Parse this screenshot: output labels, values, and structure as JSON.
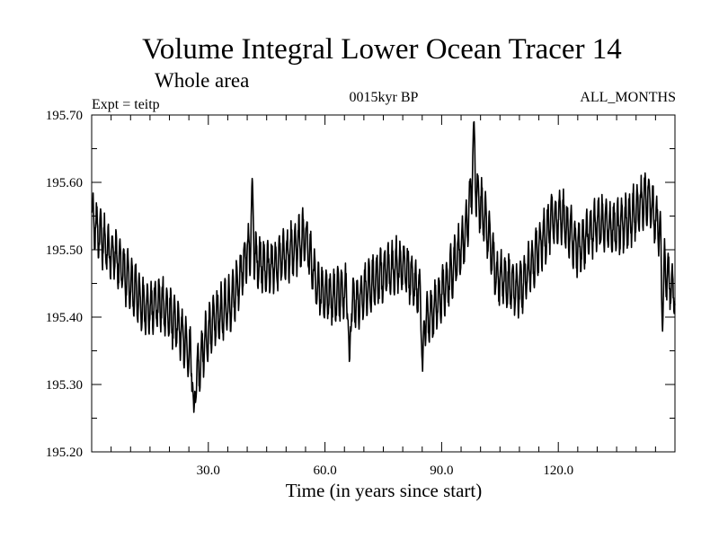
{
  "chart_data": {
    "type": "line",
    "title": "Volume Integral Lower Ocean Tracer 14",
    "subtitle": "Whole area",
    "left_label": "Expt = teitp",
    "center_label": "0015kyr BP",
    "right_label": "ALL_MONTHS",
    "xlabel": "Time (in years since start)",
    "ylabel": "",
    "xlim": [
      0,
      150
    ],
    "ylim": [
      195.2,
      195.7
    ],
    "x_major_ticks": [
      30.0,
      60.0,
      90.0,
      120.0
    ],
    "x_tick_labels": [
      "30.0",
      "60.0",
      "90.0",
      "120.0"
    ],
    "x_minor_step": 5,
    "y_major_ticks": [
      195.2,
      195.3,
      195.4,
      195.5,
      195.6,
      195.7
    ],
    "y_tick_labels": [
      "195.20",
      "195.30",
      "195.40",
      "195.50",
      "195.60",
      "195.70"
    ],
    "y_minor_step": 0.05,
    "grid": false,
    "series": [
      {
        "name": "Tracer 14",
        "color": "#000000",
        "sampling": "monthly",
        "x_start": 0.0417,
        "x_step": 0.0833,
        "trend_x": [
          0,
          3,
          6,
          10,
          14,
          18,
          22,
          25,
          27,
          29,
          32,
          36,
          40,
          42,
          45,
          50,
          55,
          58,
          62,
          65,
          68,
          72,
          76,
          80,
          84,
          86,
          89,
          92,
          96,
          98,
          101,
          104,
          107,
          110,
          114,
          118,
          121,
          125,
          130,
          135,
          139,
          143,
          146,
          148,
          150
        ],
        "trend_y": [
          195.55,
          195.51,
          195.49,
          195.45,
          195.41,
          195.42,
          195.39,
          195.35,
          195.31,
          195.36,
          195.4,
          195.42,
          195.5,
          195.49,
          195.47,
          195.49,
          195.52,
          195.44,
          195.43,
          195.44,
          195.42,
          195.45,
          195.47,
          195.48,
          195.44,
          195.39,
          195.42,
          195.46,
          195.52,
          195.6,
          195.55,
          195.46,
          195.45,
          195.44,
          195.49,
          195.54,
          195.55,
          195.5,
          195.54,
          195.53,
          195.55,
          195.58,
          195.53,
          195.46,
          195.44
        ],
        "seasonal_amplitude": 0.035,
        "noise_amplitude": 0.012,
        "extremes": [
          [
            98.3,
            195.695
          ],
          [
            41.3,
            195.61
          ],
          [
            26.3,
            195.255
          ],
          [
            85.1,
            195.318
          ],
          [
            66.3,
            195.325
          ],
          [
            146.8,
            195.376
          ]
        ]
      }
    ]
  }
}
